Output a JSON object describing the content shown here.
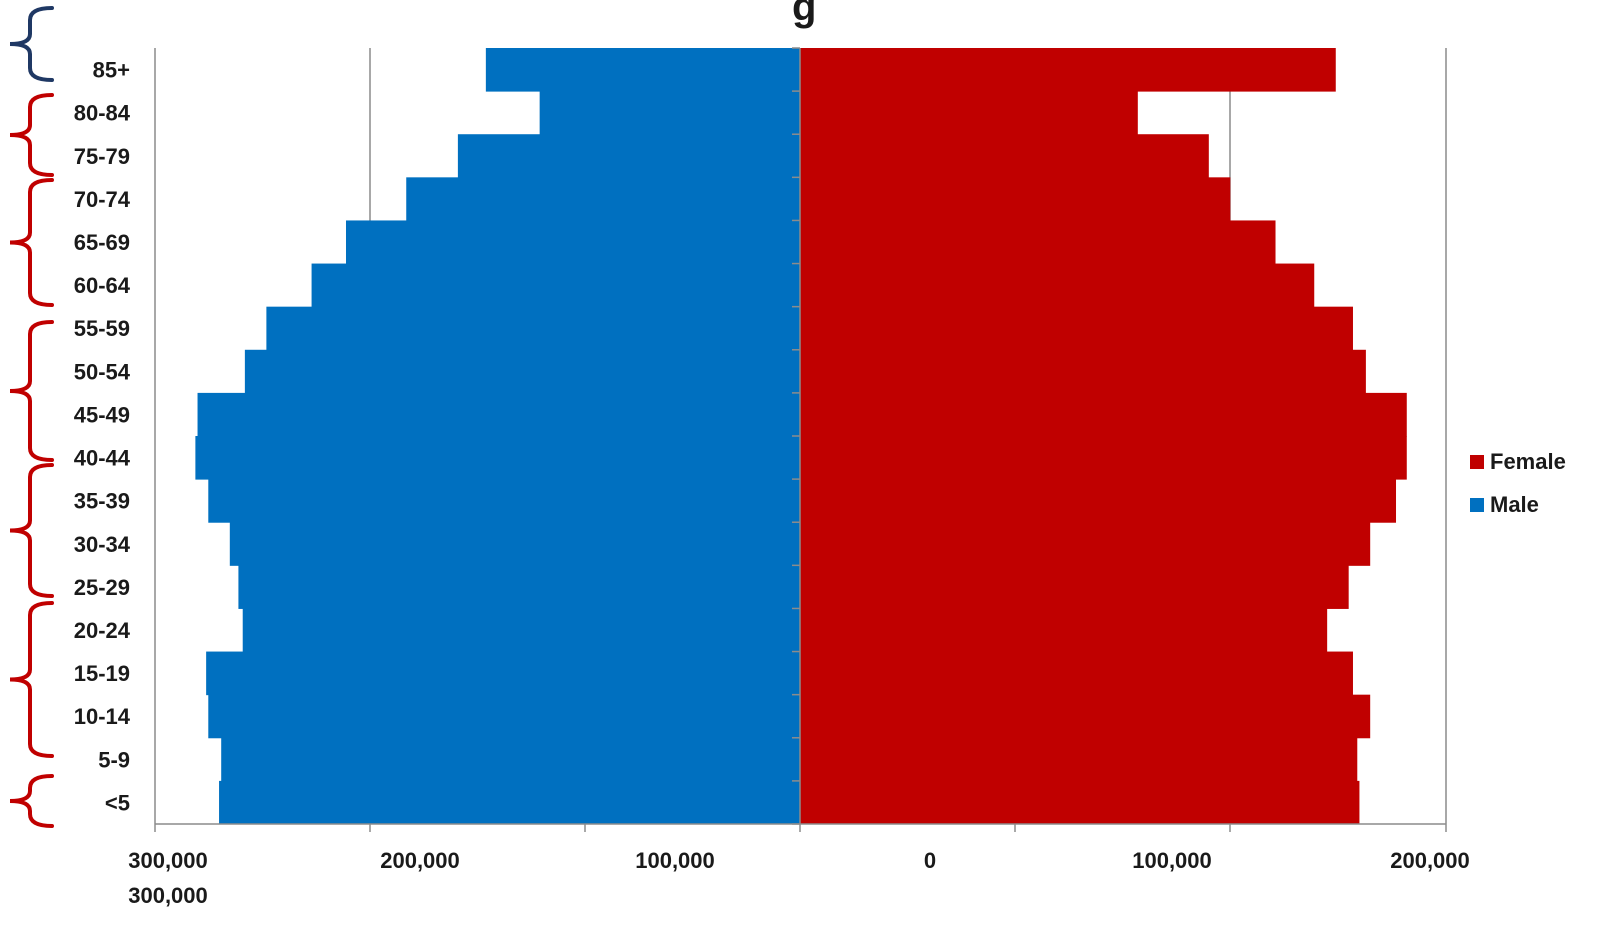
{
  "chart_data": {
    "type": "bar",
    "orientation": "horizontal-pyramid",
    "title_fragment": "g",
    "categories": [
      "85+",
      "80-84",
      "75-79",
      "70-74",
      "65-69",
      "60-64",
      "55-59",
      "50-54",
      "45-49",
      "40-44",
      "35-39",
      "30-34",
      "25-29",
      "20-24",
      "15-19",
      "10-14",
      "5-9",
      "<5"
    ],
    "series": [
      {
        "name": "Female",
        "color": "#c00000",
        "values": [
          249000,
          157000,
          190000,
          200000,
          221000,
          239000,
          257000,
          263000,
          282000,
          282000,
          277000,
          265000,
          255000,
          245000,
          257000,
          265000,
          259000,
          260000
        ]
      },
      {
        "name": "Male",
        "color": "#0070c0",
        "values": [
          146000,
          121000,
          159000,
          183000,
          211000,
          227000,
          248000,
          258000,
          280000,
          281000,
          275000,
          265000,
          261000,
          259000,
          276000,
          275000,
          269000,
          270000
        ]
      }
    ],
    "x_tick_labels": [
      "300,000",
      "200,000",
      "100,000",
      "0",
      "100,000",
      "200,000"
    ],
    "x_tick_label_extra": "300,000",
    "xlim": [
      -300000,
      300000
    ],
    "gridlines": true,
    "legend_position": "right",
    "brace_colors": [
      "#1f3864",
      "#c00000"
    ]
  },
  "legend": [
    {
      "name": "Female",
      "color": "#c00000"
    },
    {
      "name": "Male",
      "color": "#0070c0"
    }
  ]
}
